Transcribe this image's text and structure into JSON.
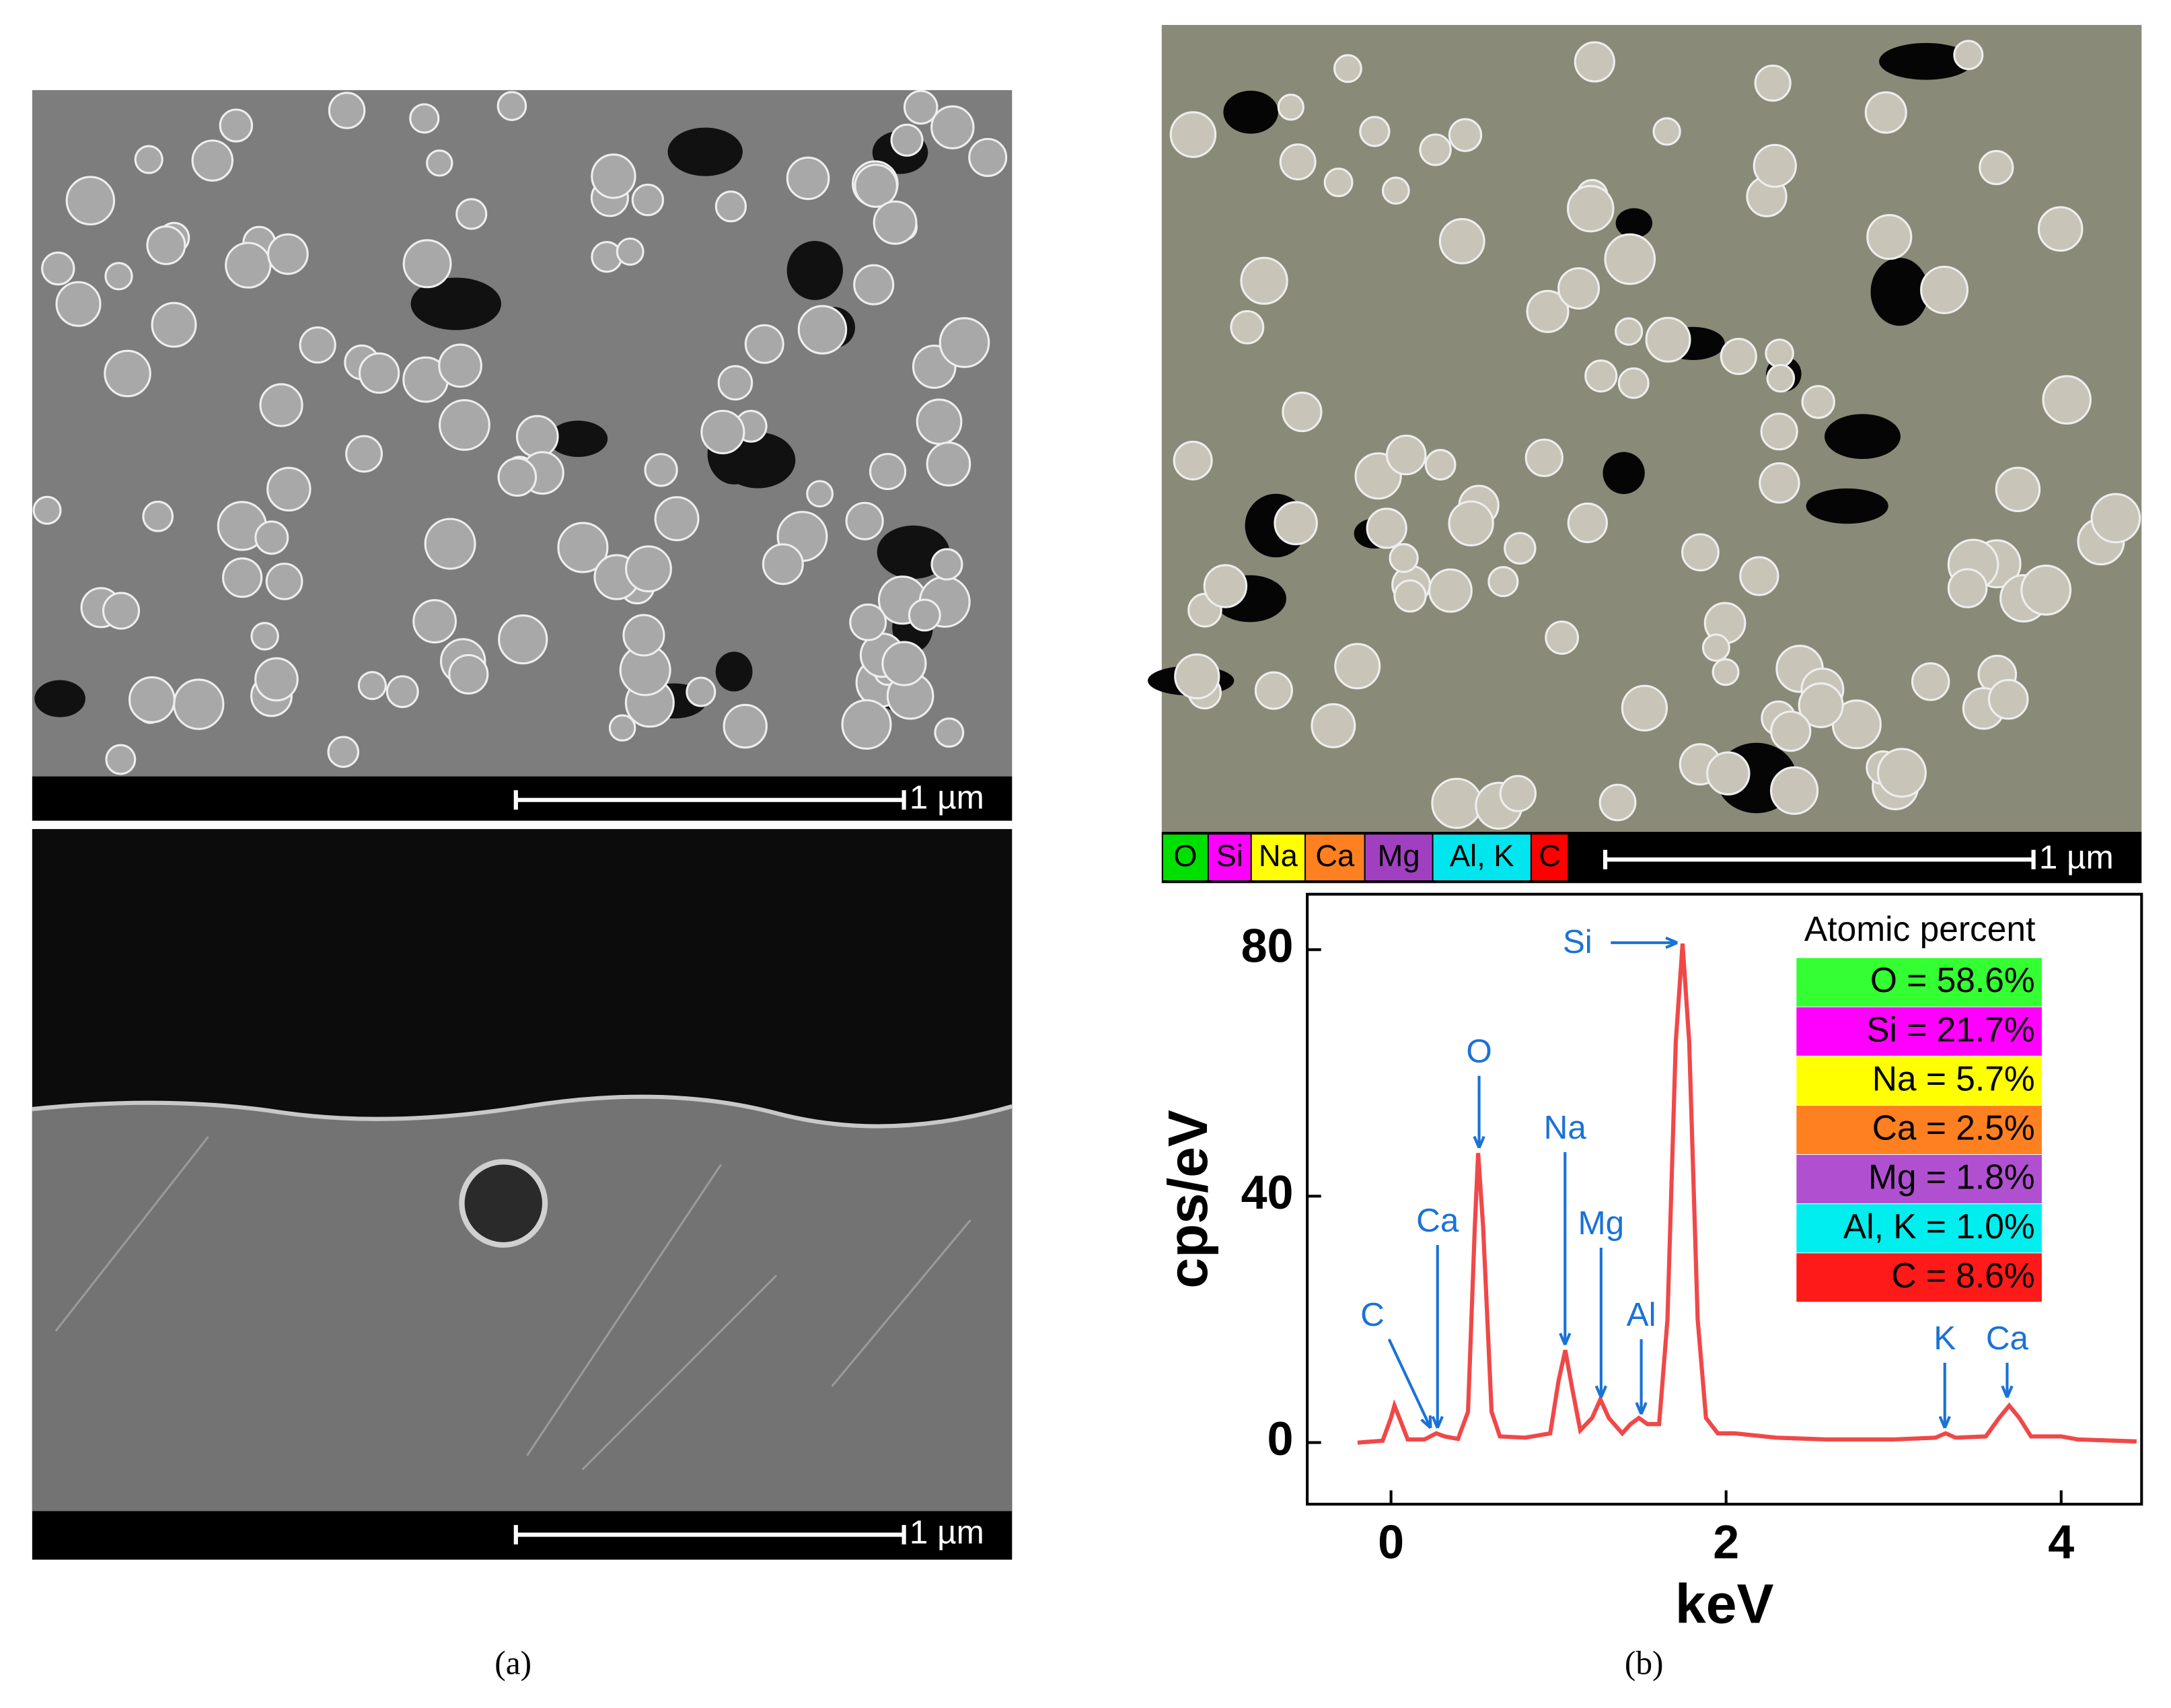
{
  "panels": {
    "a": {
      "label": "(a)",
      "scale_bar_top": "1 µm",
      "scale_bar_bottom": "1 µm"
    },
    "b": {
      "label": "(b)",
      "scale_bar": "1 µm",
      "map_legend": [
        {
          "label": "O",
          "color": "#00e000"
        },
        {
          "label": "Si",
          "color": "#ff00ff"
        },
        {
          "label": "Na",
          "color": "#ffff00"
        },
        {
          "label": "Ca",
          "color": "#ff8020"
        },
        {
          "label": "Mg",
          "color": "#a040c0"
        },
        {
          "label": "Al, K",
          "color": "#00e5ee"
        },
        {
          "label": "C",
          "color": "#ff0000"
        }
      ]
    }
  },
  "chart_data": {
    "type": "line",
    "xlabel": "keV",
    "ylabel": "cps/eV",
    "color": "#f04848",
    "x": [
      -0.2,
      -0.05,
      0.0,
      0.02,
      0.05,
      0.1,
      0.2,
      0.27,
      0.32,
      0.4,
      0.46,
      0.5,
      0.52,
      0.55,
      0.6,
      0.65,
      0.8,
      0.95,
      1.0,
      1.04,
      1.08,
      1.13,
      1.2,
      1.25,
      1.3,
      1.38,
      1.43,
      1.48,
      1.53,
      1.6,
      1.65,
      1.7,
      1.74,
      1.78,
      1.83,
      1.88,
      1.95,
      2.05,
      2.3,
      2.6,
      3.0,
      3.25,
      3.31,
      3.37,
      3.55,
      3.63,
      3.69,
      3.75,
      3.82,
      4.0,
      4.1,
      4.45
    ],
    "values": [
      0,
      0.3,
      4,
      6,
      4,
      0.5,
      0.5,
      1.5,
      1,
      0.6,
      5,
      35,
      47,
      35,
      5,
      1,
      0.8,
      1.5,
      10,
      15,
      9,
      2,
      4,
      7,
      4,
      1.5,
      3,
      4,
      3,
      3,
      20,
      65,
      81,
      65,
      20,
      4,
      1.5,
      1.5,
      0.8,
      0.5,
      0.5,
      0.8,
      1.5,
      0.8,
      1,
      4,
      6,
      4,
      1,
      1,
      0.5,
      0.2
    ],
    "xlim": [
      -0.5,
      4.48
    ],
    "ylim": [
      -10,
      89
    ],
    "xticks": [
      0,
      2,
      4
    ],
    "yticks": [
      0,
      40,
      80
    ],
    "annotations": [
      "Si",
      "O",
      "C",
      "Ca",
      "Na",
      "Mg",
      "Al",
      "K",
      "Ca"
    ],
    "table": {
      "title": "Atomic percent",
      "rows": [
        {
          "label": "O = 58.6%",
          "color": "#33ff33"
        },
        {
          "label": "Si = 21.7%",
          "color": "#ff00ff"
        },
        {
          "label": "Na = 5.7%",
          "color": "#ffff00"
        },
        {
          "label": "Ca = 2.5%",
          "color": "#ff8020"
        },
        {
          "label": "Mg = 1.8%",
          "color": "#b050d0"
        },
        {
          "label": "Al, K = 1.0%",
          "color": "#00eeee"
        },
        {
          "label": "C = 8.6%",
          "color": "#ff1a1a"
        }
      ]
    }
  }
}
